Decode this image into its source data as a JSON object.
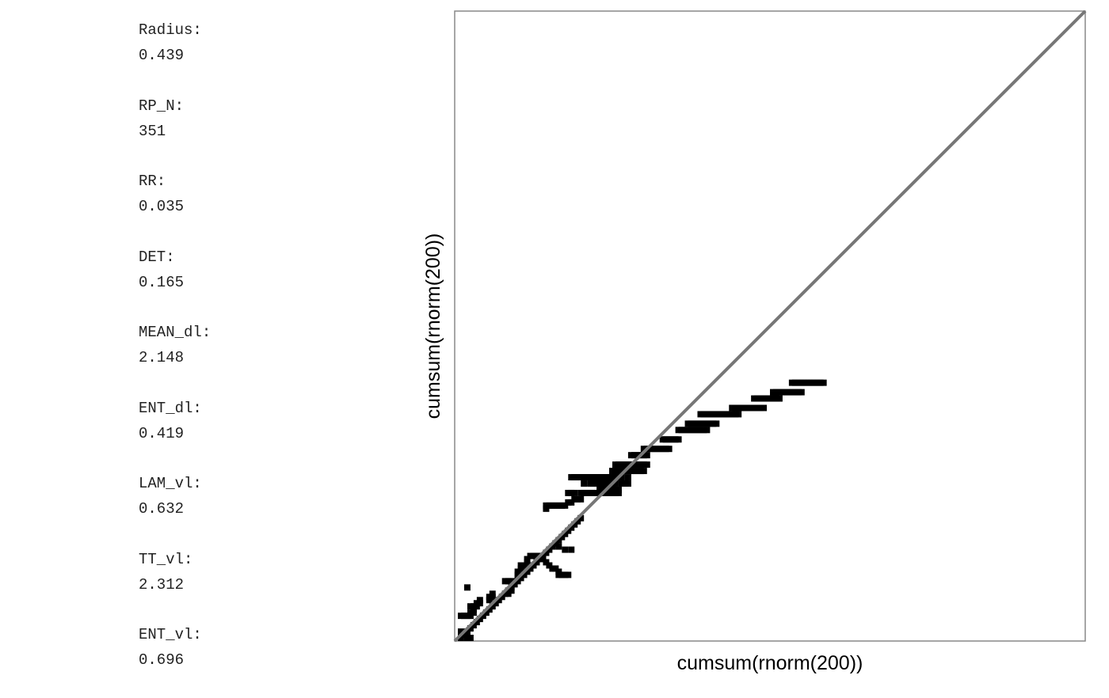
{
  "measures": [
    {
      "label": "Radius:",
      "value": "0.439"
    },
    {
      "label": "RP_N:",
      "value": "351"
    },
    {
      "label": "RR:",
      "value": "0.035"
    },
    {
      "label": "DET:",
      "value": "0.165"
    },
    {
      "label": "MEAN_dl:",
      "value": "2.148"
    },
    {
      "label": "ENT_dl:",
      "value": "0.419"
    },
    {
      "label": "LAM_vl:",
      "value": "0.632"
    },
    {
      "label": "TT_vl:",
      "value": "2.312"
    },
    {
      "label": "ENT_vl:",
      "value": "0.696"
    }
  ],
  "chart_data": {
    "type": "heatmap",
    "subtype": "recurrence-plot",
    "xlabel": "cumsum(rnorm(200))",
    "ylabel": "cumsum(rnorm(200))",
    "n": 200,
    "xlim": [
      1,
      200
    ],
    "ylim": [
      1,
      200
    ],
    "grid": false,
    "colors": {
      "recurrence": "#000000",
      "background": "#ffffff",
      "line_of_identity": "#777777",
      "frame": "#888888"
    },
    "recurrence_points": [
      [
        2,
        2
      ],
      [
        3,
        3
      ],
      [
        4,
        4
      ],
      [
        5,
        5
      ],
      [
        6,
        6
      ],
      [
        7,
        7
      ],
      [
        8,
        8
      ],
      [
        9,
        9
      ],
      [
        10,
        10
      ],
      [
        11,
        11
      ],
      [
        12,
        12
      ],
      [
        13,
        13
      ],
      [
        14,
        14
      ],
      [
        15,
        15
      ],
      [
        16,
        16
      ],
      [
        17,
        17
      ],
      [
        18,
        18
      ],
      [
        19,
        19
      ],
      [
        20,
        20
      ],
      [
        21,
        21
      ],
      [
        22,
        22
      ],
      [
        23,
        23
      ],
      [
        24,
        24
      ],
      [
        25,
        25
      ],
      [
        26,
        26
      ],
      [
        27,
        27
      ],
      [
        28,
        28
      ],
      [
        29,
        29
      ],
      [
        30,
        30
      ],
      [
        31,
        31
      ],
      [
        32,
        32
      ],
      [
        33,
        33
      ],
      [
        34,
        34
      ],
      [
        35,
        35
      ],
      [
        36,
        36
      ],
      [
        37,
        37
      ],
      [
        38,
        38
      ],
      [
        39,
        39
      ],
      [
        40,
        40
      ],
      [
        2,
        4
      ],
      [
        3,
        3
      ],
      [
        4,
        2
      ],
      [
        5,
        2
      ],
      [
        2,
        9
      ],
      [
        3,
        9
      ],
      [
        4,
        9
      ],
      [
        5,
        9
      ],
      [
        5,
        10
      ],
      [
        6,
        10
      ],
      [
        5,
        12
      ],
      [
        6,
        11
      ],
      [
        6,
        12
      ],
      [
        7,
        12
      ],
      [
        7,
        13
      ],
      [
        8,
        13
      ],
      [
        8,
        14
      ],
      [
        4,
        18
      ],
      [
        11,
        14
      ],
      [
        11,
        15
      ],
      [
        12,
        15
      ],
      [
        12,
        16
      ],
      [
        17,
        16
      ],
      [
        18,
        17
      ],
      [
        16,
        20
      ],
      [
        17,
        20
      ],
      [
        18,
        20
      ],
      [
        20,
        21
      ],
      [
        20,
        22
      ],
      [
        20,
        23
      ],
      [
        21,
        24
      ],
      [
        21,
        25
      ],
      [
        22,
        25
      ],
      [
        23,
        26
      ],
      [
        23,
        27
      ],
      [
        24,
        28
      ],
      [
        25,
        28
      ],
      [
        26,
        28
      ],
      [
        27,
        28
      ],
      [
        28,
        27
      ],
      [
        29,
        26
      ],
      [
        30,
        25
      ],
      [
        31,
        24
      ],
      [
        32,
        24
      ],
      [
        33,
        22
      ],
      [
        33,
        23
      ],
      [
        34,
        22
      ],
      [
        35,
        22
      ],
      [
        36,
        22
      ],
      [
        33,
        31
      ],
      [
        35,
        30
      ],
      [
        37,
        30
      ],
      [
        29,
        43
      ],
      [
        29,
        44
      ],
      [
        30,
        44
      ],
      [
        31,
        44
      ],
      [
        32,
        44
      ],
      [
        33,
        44
      ],
      [
        34,
        44
      ],
      [
        35,
        44
      ],
      [
        36,
        45
      ],
      [
        37,
        45
      ],
      [
        38,
        46
      ],
      [
        39,
        46
      ],
      [
        40,
        46
      ],
      [
        36,
        48
      ],
      [
        37,
        48
      ],
      [
        38,
        48
      ],
      [
        40,
        48
      ],
      [
        41,
        48
      ],
      [
        42,
        48
      ],
      [
        43,
        48
      ],
      [
        44,
        48
      ],
      [
        45,
        48
      ],
      [
        47,
        48
      ],
      [
        48,
        48
      ],
      [
        49,
        48
      ],
      [
        50,
        48
      ],
      [
        51,
        48
      ],
      [
        52,
        48
      ],
      [
        46,
        49
      ],
      [
        47,
        49
      ],
      [
        48,
        49
      ],
      [
        49,
        49
      ],
      [
        50,
        49
      ],
      [
        51,
        49
      ],
      [
        52,
        49
      ],
      [
        41,
        51
      ],
      [
        43,
        51
      ],
      [
        44,
        51
      ],
      [
        45,
        51
      ],
      [
        46,
        51
      ],
      [
        47,
        51
      ],
      [
        48,
        51
      ],
      [
        49,
        51
      ],
      [
        50,
        51
      ],
      [
        51,
        51
      ],
      [
        53,
        51
      ],
      [
        54,
        51
      ],
      [
        55,
        51
      ],
      [
        37,
        53
      ],
      [
        38,
        53
      ],
      [
        39,
        53
      ],
      [
        40,
        53
      ],
      [
        41,
        53
      ],
      [
        42,
        53
      ],
      [
        43,
        53
      ],
      [
        44,
        53
      ],
      [
        45,
        53
      ],
      [
        46,
        53
      ],
      [
        47,
        53
      ],
      [
        48,
        53
      ],
      [
        49,
        53
      ],
      [
        50,
        53
      ],
      [
        51,
        53
      ],
      [
        52,
        53
      ],
      [
        53,
        53
      ],
      [
        55,
        53
      ],
      [
        50,
        55
      ],
      [
        51,
        55
      ],
      [
        52,
        55
      ],
      [
        53,
        55
      ],
      [
        54,
        55
      ],
      [
        55,
        55
      ],
      [
        56,
        55
      ],
      [
        57,
        55
      ],
      [
        58,
        55
      ],
      [
        59,
        55
      ],
      [
        60,
        55
      ],
      [
        51,
        57
      ],
      [
        52,
        57
      ],
      [
        53,
        57
      ],
      [
        54,
        57
      ],
      [
        55,
        57
      ],
      [
        56,
        57
      ],
      [
        57,
        57
      ],
      [
        58,
        57
      ],
      [
        59,
        57
      ],
      [
        60,
        57
      ],
      [
        61,
        57
      ],
      [
        56,
        60
      ],
      [
        57,
        60
      ],
      [
        58,
        60
      ],
      [
        59,
        60
      ],
      [
        60,
        60
      ],
      [
        61,
        60
      ],
      [
        60,
        62
      ],
      [
        61,
        62
      ],
      [
        62,
        62
      ],
      [
        63,
        62
      ],
      [
        64,
        62
      ],
      [
        65,
        62
      ],
      [
        66,
        62
      ],
      [
        67,
        62
      ],
      [
        68,
        62
      ],
      [
        66,
        65
      ],
      [
        67,
        65
      ],
      [
        68,
        65
      ],
      [
        69,
        65
      ],
      [
        70,
        65
      ],
      [
        71,
        65
      ],
      [
        71,
        68
      ],
      [
        72,
        68
      ],
      [
        73,
        68
      ],
      [
        74,
        68
      ],
      [
        75,
        68
      ],
      [
        76,
        68
      ],
      [
        77,
        68
      ],
      [
        78,
        68
      ],
      [
        79,
        68
      ],
      [
        80,
        68
      ],
      [
        74,
        70
      ],
      [
        75,
        70
      ],
      [
        76,
        70
      ],
      [
        77,
        70
      ],
      [
        78,
        70
      ],
      [
        79,
        70
      ],
      [
        80,
        70
      ],
      [
        81,
        70
      ],
      [
        82,
        70
      ],
      [
        83,
        70
      ],
      [
        78,
        73
      ],
      [
        79,
        73
      ],
      [
        80,
        73
      ],
      [
        81,
        73
      ],
      [
        82,
        73
      ],
      [
        83,
        73
      ],
      [
        84,
        73
      ],
      [
        85,
        73
      ],
      [
        86,
        73
      ],
      [
        87,
        73
      ],
      [
        88,
        73
      ],
      [
        89,
        73
      ],
      [
        90,
        73
      ],
      [
        88,
        75
      ],
      [
        89,
        75
      ],
      [
        90,
        75
      ],
      [
        91,
        75
      ],
      [
        92,
        75
      ],
      [
        93,
        75
      ],
      [
        94,
        75
      ],
      [
        95,
        75
      ],
      [
        96,
        75
      ],
      [
        97,
        75
      ],
      [
        98,
        75
      ],
      [
        95,
        78
      ],
      [
        96,
        78
      ],
      [
        97,
        78
      ],
      [
        98,
        78
      ],
      [
        99,
        78
      ],
      [
        100,
        78
      ],
      [
        101,
        78
      ],
      [
        102,
        78
      ],
      [
        103,
        78
      ],
      [
        101,
        80
      ],
      [
        102,
        80
      ],
      [
        103,
        80
      ],
      [
        104,
        80
      ],
      [
        105,
        80
      ],
      [
        106,
        80
      ],
      [
        107,
        80
      ],
      [
        108,
        80
      ],
      [
        109,
        80
      ],
      [
        110,
        80
      ],
      [
        107,
        83
      ],
      [
        108,
        83
      ],
      [
        109,
        83
      ],
      [
        110,
        83
      ],
      [
        111,
        83
      ],
      [
        112,
        83
      ],
      [
        113,
        83
      ],
      [
        114,
        83
      ],
      [
        115,
        83
      ],
      [
        116,
        83
      ],
      [
        117,
        83
      ]
    ]
  }
}
